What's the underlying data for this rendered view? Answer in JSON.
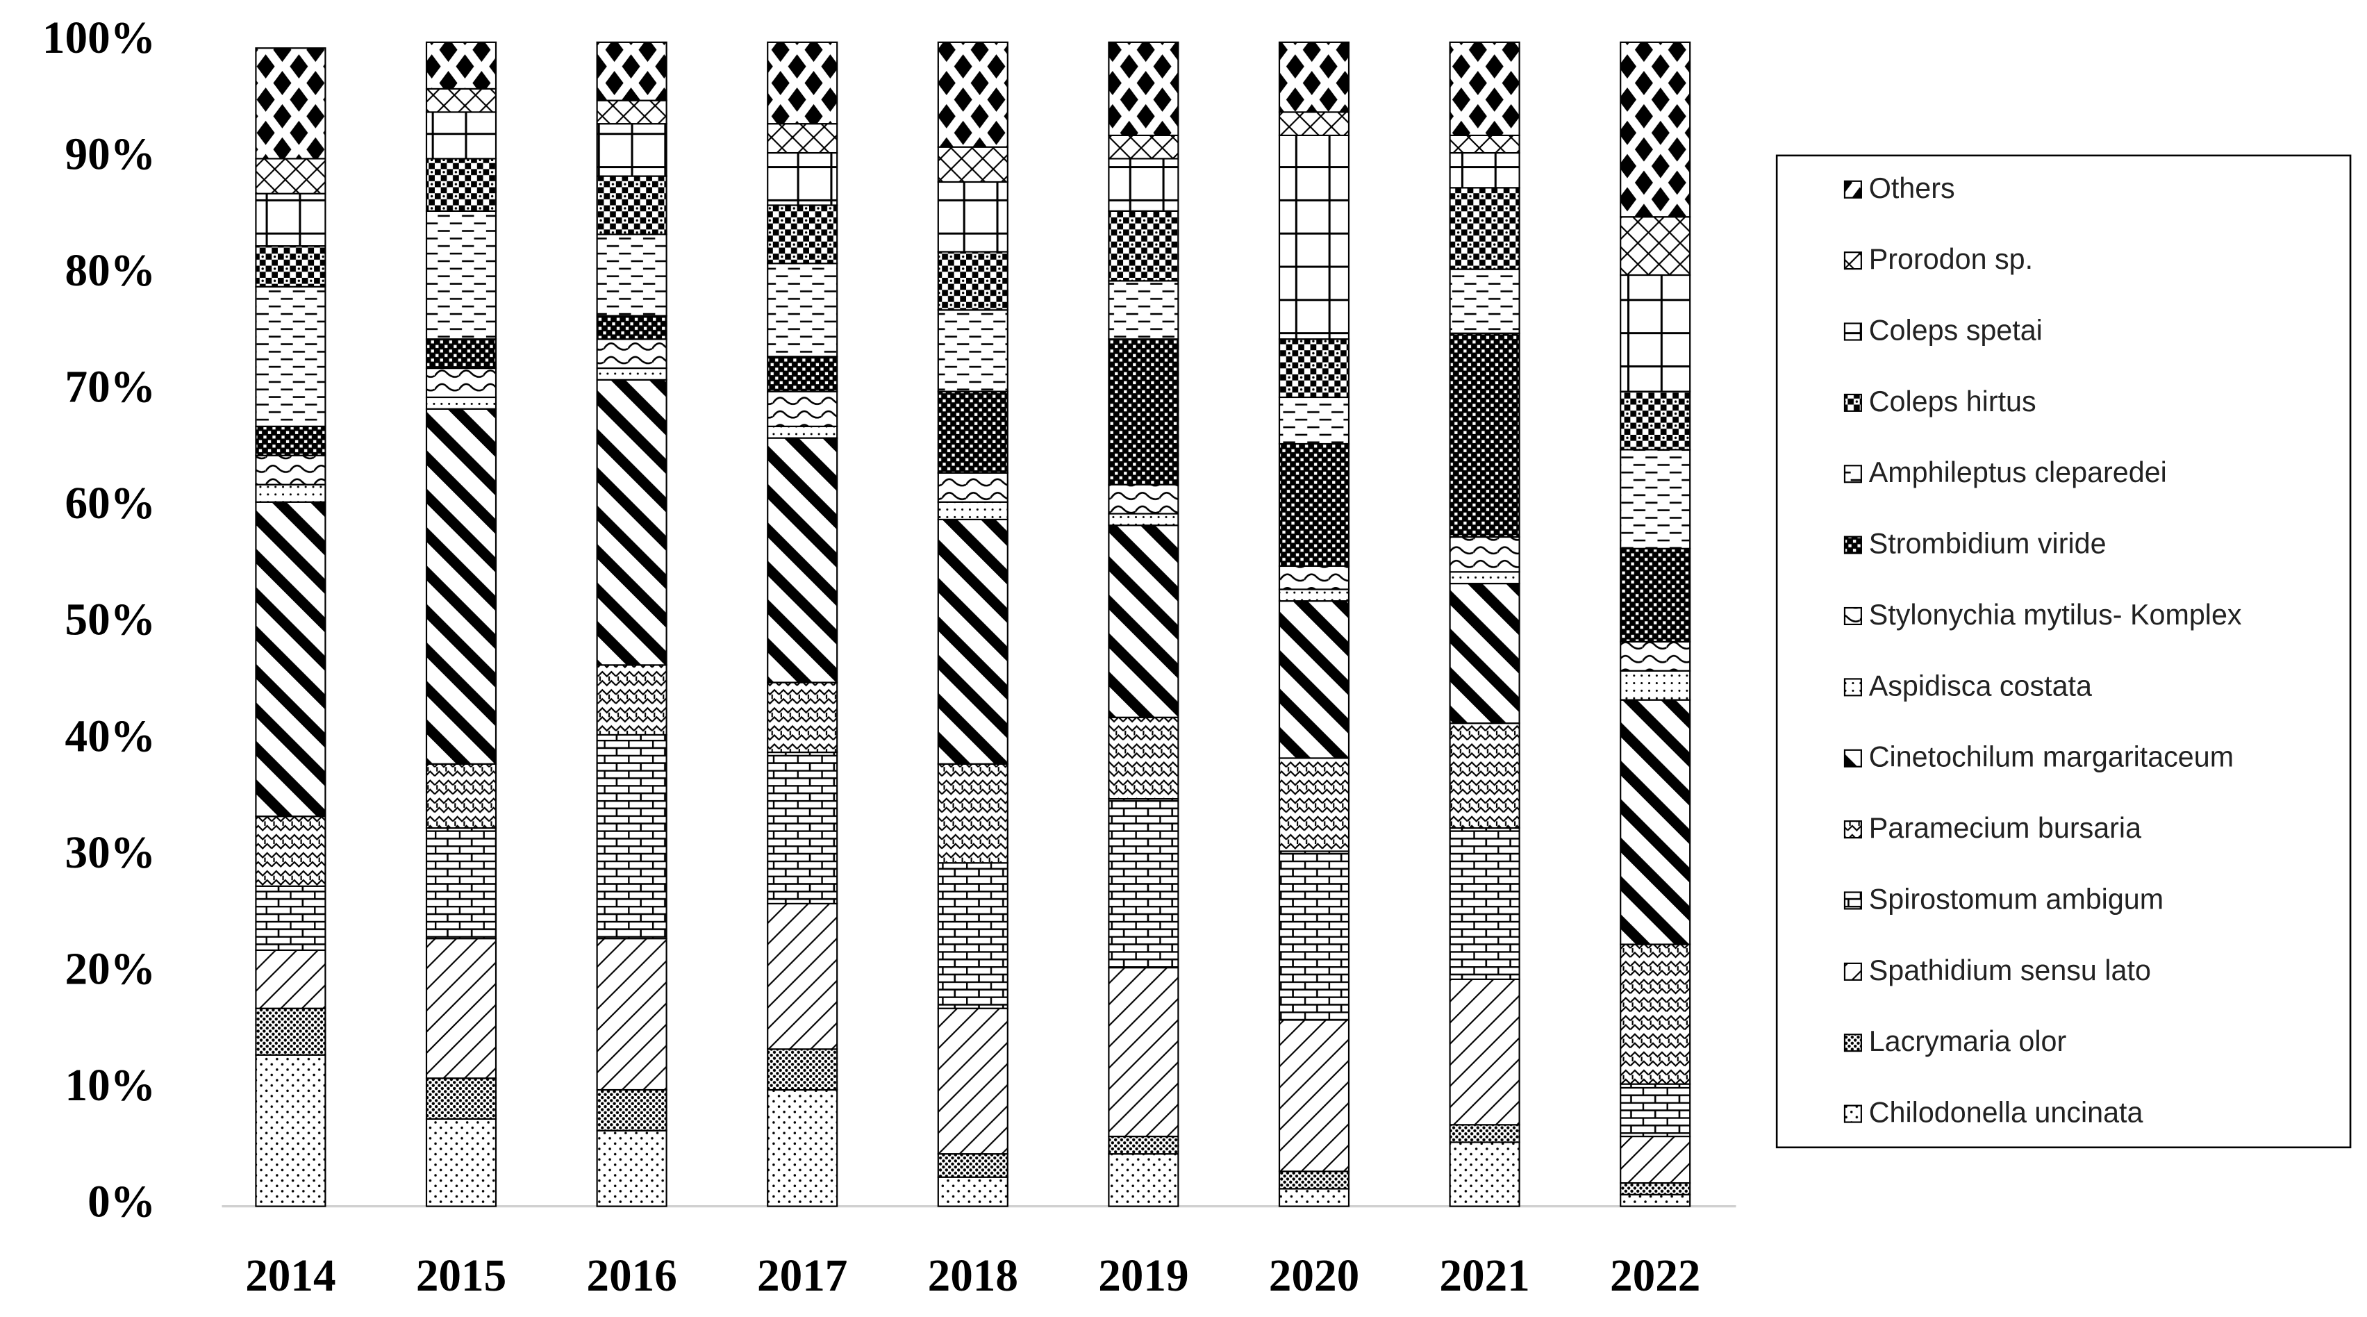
{
  "chart_data": {
    "type": "stacked-bar",
    "categories": [
      "2014",
      "2015",
      "2016",
      "2017",
      "2018",
      "2019",
      "2020",
      "2021",
      "2022"
    ],
    "ylim": [
      0,
      100
    ],
    "yticks": [
      {
        "value": 0,
        "label": "0%"
      },
      {
        "value": 10,
        "label": "10%"
      },
      {
        "value": 20,
        "label": "20%"
      },
      {
        "value": 30,
        "label": "30%"
      },
      {
        "value": 40,
        "label": "40%"
      },
      {
        "value": 50,
        "label": "50%"
      },
      {
        "value": 60,
        "label": "60%"
      },
      {
        "value": 70,
        "label": "70%"
      },
      {
        "value": 80,
        "label": "80%"
      },
      {
        "value": 90,
        "label": "90%"
      },
      {
        "value": 100,
        "label": "100%"
      }
    ],
    "legend": "right",
    "series": [
      {
        "name": "Chilodonella uncinata",
        "color": "#000000",
        "pattern": "dots",
        "values": [
          13,
          7.5,
          6.5,
          10,
          2.5,
          4.5,
          1.5,
          5.5,
          1
        ]
      },
      {
        "name": "Lacrymaria olor",
        "color": "#000000",
        "pattern": "dense-dots",
        "values": [
          4,
          3.5,
          3.5,
          3.5,
          2,
          1.5,
          1.5,
          1.5,
          1
        ]
      },
      {
        "name": "Spathidium sensu lato",
        "color": "#000000",
        "pattern": "light-diagonal",
        "values": [
          5,
          12,
          13,
          12.5,
          12.5,
          14.5,
          13,
          12.5,
          4
        ]
      },
      {
        "name": "Spirostomum ambigum",
        "color": "#000000",
        "pattern": "brick",
        "values": [
          5.5,
          9.5,
          17.5,
          13,
          12.5,
          14.5,
          14.5,
          13,
          4.5
        ]
      },
      {
        "name": "Paramecium bursaria",
        "color": "#000000",
        "pattern": "weave",
        "values": [
          6,
          5.5,
          6,
          6,
          8.5,
          7,
          8,
          9,
          12
        ]
      },
      {
        "name": "Cinetochilum margaritaceum",
        "color": "#000000",
        "pattern": "thick-diagonal",
        "values": [
          27,
          30.5,
          24.5,
          21,
          21,
          16.5,
          13.5,
          12,
          21
        ]
      },
      {
        "name": "Aspidisca costata",
        "color": "#000000",
        "pattern": "fine-dots",
        "values": [
          1.5,
          1,
          1,
          1,
          1.5,
          1,
          1,
          1,
          2.5
        ]
      },
      {
        "name": "Stylonychia mytilus- Komplex",
        "color": "#000000",
        "pattern": "waves",
        "values": [
          2.5,
          2.5,
          2.5,
          3,
          2.5,
          2.5,
          2,
          3,
          2.5
        ]
      },
      {
        "name": "Strombidium viride",
        "color": "#000000",
        "pattern": "dark-check",
        "values": [
          2.5,
          2.5,
          2,
          3,
          7,
          12.5,
          10.5,
          17.5,
          8
        ]
      },
      {
        "name": "Amphileptus cleparedei",
        "color": "#000000",
        "pattern": "dashes",
        "values": [
          12,
          11,
          7,
          8,
          7,
          5,
          4,
          5.5,
          8.5
        ]
      },
      {
        "name": "Coleps hirtus",
        "color": "#000000",
        "pattern": "checker",
        "values": [
          3.5,
          4.5,
          5,
          5,
          5,
          6,
          5,
          7,
          5
        ]
      },
      {
        "name": "Coleps spetai",
        "color": "#000000",
        "pattern": "grid",
        "values": [
          4.5,
          4,
          4.5,
          4.5,
          6,
          4.5,
          17.5,
          3,
          10
        ]
      },
      {
        "name": "Prorodon sp.",
        "color": "#000000",
        "pattern": "cross",
        "values": [
          3,
          2,
          2,
          2.5,
          3,
          2,
          2,
          1.5,
          5
        ]
      },
      {
        "name": "Others",
        "color": "#000000",
        "pattern": "diamonds",
        "values": [
          9.5,
          4,
          5,
          7,
          9,
          8,
          6,
          8,
          15
        ]
      }
    ]
  }
}
